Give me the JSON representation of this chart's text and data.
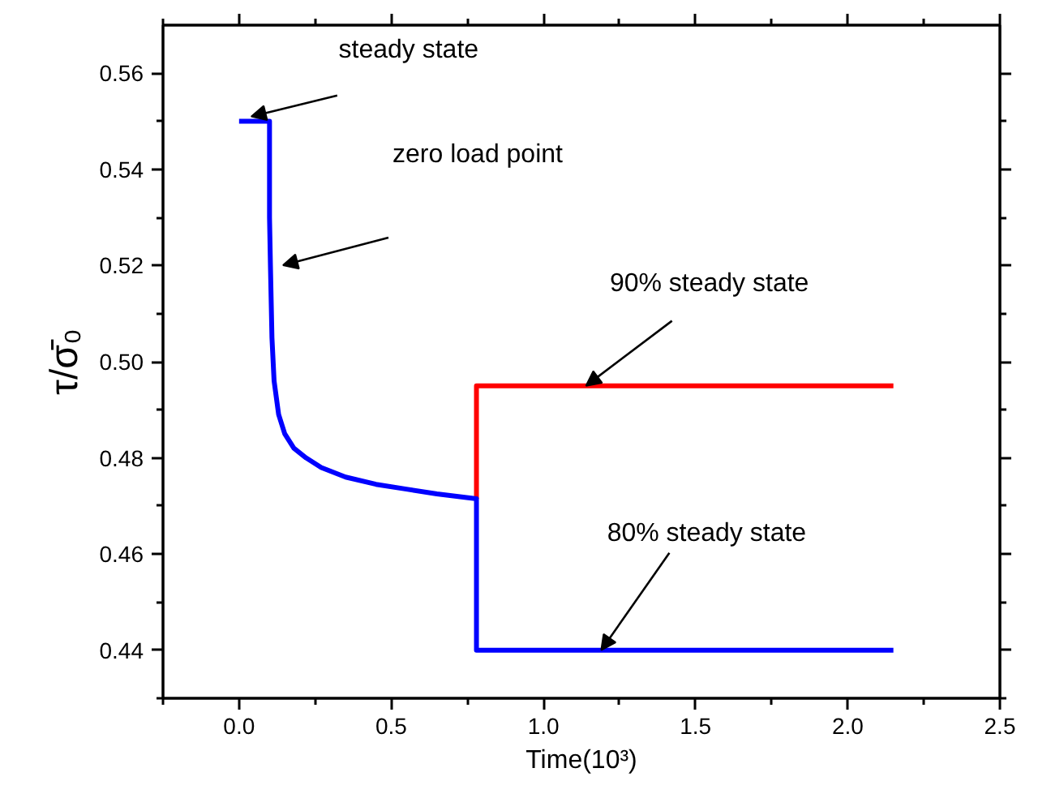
{
  "chart_data": {
    "type": "line",
    "xlabel": "Time(10³)",
    "ylabel": "τ/σ̄₀",
    "xlim": [
      -0.25,
      2.5
    ],
    "ylim": [
      0.43,
      0.57
    ],
    "xticks": [
      {
        "value": 0,
        "label": "0.0"
      },
      {
        "value": 0.5,
        "label": "0.5"
      },
      {
        "value": 1,
        "label": "1.0"
      },
      {
        "value": 1.5,
        "label": "1.5"
      },
      {
        "value": 2,
        "label": "2.0"
      },
      {
        "value": 2.5,
        "label": "2.5"
      }
    ],
    "yticks": [
      {
        "value": 0.44,
        "label": "0.44"
      },
      {
        "value": 0.46,
        "label": "0.46"
      },
      {
        "value": 0.48,
        "label": "0.48"
      },
      {
        "value": 0.5,
        "label": "0.50"
      },
      {
        "value": 0.52,
        "label": "0.52"
      },
      {
        "value": 0.54,
        "label": "0.54"
      },
      {
        "value": 0.56,
        "label": "0.56"
      }
    ],
    "grid": false,
    "marker": "none",
    "line_style": "solid",
    "series": [
      {
        "color": "#ff0000",
        "x": [
          0.78,
          0.78,
          2.15
        ],
        "values": [
          0.4715,
          0.495,
          0.495
        ]
      },
      {
        "color": "#0000ff",
        "x": [
          0,
          0.1,
          0.1,
          0.103,
          0.108,
          0.115,
          0.13,
          0.15,
          0.18,
          0.22,
          0.27,
          0.35,
          0.45,
          0.55,
          0.65,
          0.78,
          0.78,
          2.15
        ],
        "values": [
          0.55,
          0.55,
          0.53,
          0.52,
          0.505,
          0.496,
          0.489,
          0.485,
          0.482,
          0.48,
          0.478,
          0.476,
          0.4745,
          0.4735,
          0.4725,
          0.4715,
          0.44,
          0.44
        ]
      }
    ],
    "annotations": [
      {
        "text": "steady state",
        "x": 0.04,
        "y": 0.551
      },
      "zero load point",
      {
        "text": "90% steady state",
        "x": 1.14,
        "y": 0.495
      },
      {
        "text": "80% steady state",
        "x": 1.19,
        "y": 0.44
      }
    ]
  }
}
